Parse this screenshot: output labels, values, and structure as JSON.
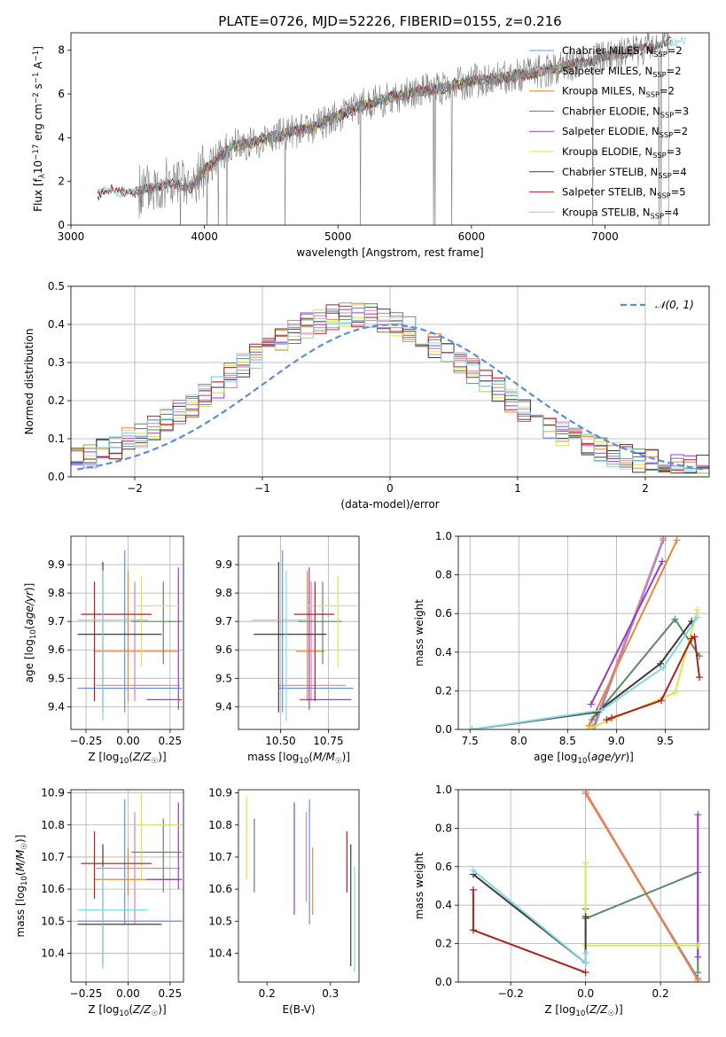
{
  "title": "PLATE=0726, MJD=52226, FIBERID=0155, z=0.216",
  "colors": {
    "chabrier_miles": "#6a8fd8",
    "salpeter_miles": "#e07fb0",
    "kroupa_miles": "#e8863a",
    "chabrier_elodie": "#5b8a63",
    "salpeter_elodie": "#9a3cc0",
    "kroupa_elodie": "#d8e84a",
    "chabrier_stelib": "#3a3a3a",
    "salpeter_stelib": "#b01e1e",
    "kroupa_stelib": "#86d6e0",
    "data_spectrum": "#808080",
    "normal_curve": "#5a8fd6",
    "grid": "#b0b0b0"
  },
  "chart_data": [
    {
      "type": "line",
      "panel": "spectrum",
      "xlabel": "wavelength [Angstrom, rest frame]",
      "ylabel": "Flux [f_λ10^-17 erg cm^-2 s^-1 A^-1]",
      "xlim": [
        3000,
        7780
      ],
      "ylim": [
        0,
        8.8
      ],
      "xticks": [
        3000,
        4000,
        5000,
        6000,
        7000
      ],
      "yticks": [
        0,
        2,
        4,
        6,
        8
      ],
      "grid": false,
      "legend_position": "upper right",
      "legend": [
        {
          "label": "Chabrier MILES, N",
          "sub": "SSP",
          "tail": "=2",
          "color": "#6a8fd8"
        },
        {
          "label": "Salpeter MILES, N",
          "sub": "SSP",
          "tail": "=2",
          "color": "#e07fb0"
        },
        {
          "label": "Kroupa MILES, N",
          "sub": "SSP",
          "tail": "=2",
          "color": "#e8863a"
        },
        {
          "label": "Chabrier ELODIE, N",
          "sub": "SSP",
          "tail": "=3",
          "color": "#5b8a63"
        },
        {
          "label": "Salpeter ELODIE, N",
          "sub": "SSP",
          "tail": "=2",
          "color": "#9a3cc0"
        },
        {
          "label": "Kroupa ELODIE, N",
          "sub": "SSP",
          "tail": "=3",
          "color": "#d8e84a"
        },
        {
          "label": "Chabrier STELIB, N",
          "sub": "SSP",
          "tail": "=4",
          "color": "#3a3a3a"
        },
        {
          "label": "Salpeter STELIB, N",
          "sub": "SSP",
          "tail": "=5",
          "color": "#b01e1e"
        },
        {
          "label": "Kroupa STELIB, N",
          "sub": "SSP",
          "tail": "=4",
          "color": "#86d6e0"
        }
      ],
      "continuum": {
        "x": [
          3200,
          3300,
          3500,
          3700,
          3900,
          4000,
          4200,
          4500,
          4800,
          5000,
          5200,
          5500,
          5800,
          6000,
          6200,
          6500,
          6800,
          7000,
          7300,
          7600
        ],
        "y": [
          1.45,
          1.6,
          1.5,
          1.9,
          1.7,
          2.5,
          3.6,
          4.0,
          4.5,
          5.0,
          5.5,
          6.0,
          6.3,
          6.6,
          6.7,
          7.0,
          7.4,
          7.7,
          8.1,
          8.5
        ]
      },
      "model_ranges": [
        {
          "series": "chabrier_miles",
          "x": [
            3500,
            7400
          ]
        },
        {
          "series": "salpeter_miles",
          "x": [
            3500,
            7400
          ]
        },
        {
          "series": "kroupa_miles",
          "x": [
            3520,
            7410
          ]
        },
        {
          "series": "chabrier_elodie",
          "x": [
            3900,
            6800
          ]
        },
        {
          "series": "salpeter_elodie",
          "x": [
            3900,
            6800
          ]
        },
        {
          "series": "kroupa_elodie",
          "x": [
            3900,
            6800
          ]
        },
        {
          "series": "chabrier_stelib",
          "x": [
            3200,
            7500
          ]
        },
        {
          "series": "salpeter_stelib",
          "x": [
            3200,
            7500
          ]
        },
        {
          "series": "kroupa_stelib",
          "x": [
            3200,
            7600
          ]
        }
      ]
    },
    {
      "type": "line",
      "panel": "residual_histogram",
      "xlabel": "(data-model)/error",
      "ylabel": "Normed distribution",
      "xlim": [
        -2.5,
        2.5
      ],
      "ylim": [
        0,
        0.5
      ],
      "xticks": [
        -2,
        -1,
        0,
        1,
        2
      ],
      "yticks": [
        0.0,
        0.1,
        0.2,
        0.3,
        0.4,
        0.5
      ],
      "grid": true,
      "legend_position": "upper right",
      "normal_label": "𝒩(0, 1)",
      "bin_width": 0.1,
      "bin_start": -2.5
    },
    {
      "type": "scatter",
      "panel": "age_vs_Z",
      "xlabel": "Z [log10(Z/Z☉)]",
      "ylabel": "age [log10(age/yr)]",
      "xlim": [
        -0.34,
        0.33
      ],
      "ylim": [
        9.32,
        10.0
      ],
      "xticks": [
        -0.25,
        0.0,
        0.25
      ],
      "yticks": [
        9.4,
        9.5,
        9.6,
        9.7,
        9.8,
        9.9
      ],
      "grid": true,
      "points": [
        {
          "series": "chabrier_miles",
          "Z": -0.02,
          "Z_err": [
            -0.3,
            0.32
          ],
          "age": 9.465,
          "age_err": [
            9.38,
            9.95
          ]
        },
        {
          "series": "salpeter_miles",
          "Z": 0.04,
          "Z_err": [
            -0.19,
            0.31
          ],
          "age": 9.475,
          "age_err": [
            9.42,
            9.84
          ]
        },
        {
          "series": "kroupa_miles",
          "Z": 0.0,
          "Z_err": [
            -0.2,
            0.3
          ],
          "age": 9.595,
          "age_err": [
            9.42,
            9.88
          ]
        },
        {
          "series": "chabrier_elodie",
          "Z": 0.21,
          "Z_err": [
            0.02,
            0.32
          ],
          "age": 9.7,
          "age_err": [
            9.55,
            9.84
          ]
        },
        {
          "series": "salpeter_elodie",
          "Z": 0.3,
          "Z_err": [
            0.11,
            0.32
          ],
          "age": 9.425,
          "age_err": [
            9.39,
            9.89
          ]
        },
        {
          "series": "kroupa_elodie",
          "Z": 0.08,
          "Z_err": [
            0.05,
            0.31
          ],
          "age": 9.755,
          "age_err": [
            9.54,
            9.86
          ]
        },
        {
          "series": "chabrier_stelib",
          "Z": -0.15,
          "Z_err": [
            -0.3,
            0.2
          ],
          "age": 9.655,
          "age_err": [
            9.38,
            9.91
          ]
        },
        {
          "series": "salpeter_stelib",
          "Z": -0.2,
          "Z_err": [
            -0.28,
            0.14
          ],
          "age": 9.725,
          "age_err": [
            9.42,
            9.84
          ]
        },
        {
          "series": "kroupa_stelib",
          "Z": -0.15,
          "Z_err": [
            -0.3,
            0.12
          ],
          "age": 9.705,
          "age_err": [
            9.35,
            9.88
          ]
        }
      ]
    },
    {
      "type": "scatter",
      "panel": "age_vs_mass",
      "xlabel": "mass [log10(M/M☉)]",
      "ylabel": "",
      "xlim": [
        10.28,
        10.91
      ],
      "ylim": [
        9.32,
        10.0
      ],
      "xticks": [
        10.5,
        10.75
      ],
      "yticks": [
        9.4,
        9.5,
        9.6,
        9.7,
        9.8,
        9.9
      ],
      "grid": true,
      "points": [
        {
          "series": "chabrier_miles",
          "mass": 10.51,
          "mass_err": [
            10.49,
            10.88
          ],
          "age": 9.465,
          "age_err": [
            9.38,
            9.95
          ]
        },
        {
          "series": "salpeter_miles",
          "mass": 10.66,
          "mass_err": [
            10.49,
            10.84
          ],
          "age": 9.475,
          "age_err": [
            9.42,
            9.84
          ]
        },
        {
          "series": "kroupa_miles",
          "mass": 10.64,
          "mass_err": [
            10.58,
            10.73
          ],
          "age": 9.595,
          "age_err": [
            9.42,
            9.88
          ]
        },
        {
          "series": "chabrier_elodie",
          "mass": 10.72,
          "mass_err": [
            10.59,
            10.82
          ],
          "age": 9.7,
          "age_err": [
            9.55,
            9.84
          ]
        },
        {
          "series": "salpeter_elodie",
          "mass": 10.65,
          "mass_err": [
            10.6,
            10.87
          ],
          "age": 9.425,
          "age_err": [
            9.39,
            9.89
          ]
        },
        {
          "series": "kroupa_elodie",
          "mass": 10.8,
          "mass_err": [
            10.63,
            10.9
          ],
          "age": 9.755,
          "age_err": [
            9.54,
            9.86
          ]
        },
        {
          "series": "chabrier_stelib",
          "mass": 10.49,
          "mass_err": [
            10.36,
            10.74
          ],
          "age": 9.655,
          "age_err": [
            9.38,
            9.91
          ]
        },
        {
          "series": "salpeter_stelib",
          "mass": 10.68,
          "mass_err": [
            10.57,
            10.78
          ],
          "age": 9.725,
          "age_err": [
            9.42,
            9.84
          ]
        },
        {
          "series": "kroupa_stelib",
          "mass": 10.53,
          "mass_err": [
            10.35,
            10.67
          ],
          "age": 9.705,
          "age_err": [
            9.35,
            9.88
          ]
        }
      ]
    },
    {
      "type": "line",
      "panel": "mass_weight_vs_age",
      "xlabel": "age [log10(age/yr)]",
      "ylabel": "mass weight",
      "xlim": [
        7.38,
        9.95
      ],
      "ylim": [
        0,
        1.0
      ],
      "xticks": [
        7.5,
        8.0,
        8.5,
        9.0,
        9.5
      ],
      "yticks": [
        0.0,
        0.2,
        0.4,
        0.6,
        0.8,
        1.0
      ],
      "grid": true,
      "series": [
        {
          "series": "chabrier_miles",
          "x": [
            8.78,
            9.48
          ],
          "y": [
            0.02,
            0.98
          ]
        },
        {
          "series": "salpeter_miles",
          "x": [
            8.76,
            9.48
          ],
          "y": [
            0.01,
            0.99
          ]
        },
        {
          "series": "kroupa_miles",
          "x": [
            8.72,
            9.62
          ],
          "y": [
            0.02,
            0.98
          ]
        },
        {
          "series": "chabrier_elodie",
          "x": [
            8.75,
            9.6,
            9.85
          ],
          "y": [
            0.05,
            0.57,
            0.38
          ]
        },
        {
          "series": "salpeter_elodie",
          "x": [
            8.74,
            9.47
          ],
          "y": [
            0.13,
            0.87
          ]
        },
        {
          "series": "kroupa_elodie",
          "x": [
            8.7,
            9.6,
            9.83
          ],
          "y": [
            0.0,
            0.19,
            0.62
          ]
        },
        {
          "series": "chabrier_stelib",
          "x": [
            7.52,
            8.8,
            9.45,
            9.77
          ],
          "y": [
            0.0,
            0.09,
            0.34,
            0.56
          ]
        },
        {
          "series": "salpeter_stelib",
          "x": [
            8.9,
            8.95,
            9.46,
            9.77,
            9.8,
            9.85
          ],
          "y": [
            0.05,
            0.06,
            0.15,
            0.47,
            0.48,
            0.27
          ]
        },
        {
          "series": "kroupa_stelib",
          "x": [
            7.52,
            8.85,
            9.48,
            9.83
          ],
          "y": [
            0.0,
            0.1,
            0.32,
            0.58
          ]
        }
      ]
    },
    {
      "type": "scatter",
      "panel": "mass_vs_Z",
      "xlabel": "Z [log10(Z/Z☉)]",
      "ylabel": "mass [log10(M/M☉)]",
      "xlim": [
        -0.34,
        0.33
      ],
      "ylim": [
        10.31,
        10.91
      ],
      "xticks": [
        -0.25,
        0.0,
        0.25
      ],
      "yticks": [
        10.4,
        10.5,
        10.6,
        10.7,
        10.8,
        10.9
      ],
      "grid": true,
      "points": [
        {
          "series": "chabrier_miles",
          "Z": -0.02,
          "Z_err": [
            -0.3,
            0.32
          ],
          "mass": 10.5,
          "mass_err": [
            10.49,
            10.88
          ]
        },
        {
          "series": "salpeter_miles",
          "Z": 0.04,
          "Z_err": [
            -0.19,
            0.31
          ],
          "mass": 10.665,
          "mass_err": [
            10.49,
            10.84
          ]
        },
        {
          "series": "kroupa_miles",
          "Z": 0.0,
          "Z_err": [
            -0.2,
            0.3
          ],
          "mass": 10.63,
          "mass_err": [
            10.58,
            10.73
          ]
        },
        {
          "series": "chabrier_elodie",
          "Z": 0.21,
          "Z_err": [
            0.02,
            0.32
          ],
          "mass": 10.715,
          "mass_err": [
            10.59,
            10.82
          ]
        },
        {
          "series": "salpeter_elodie",
          "Z": 0.3,
          "Z_err": [
            0.11,
            0.32
          ],
          "mass": 10.63,
          "mass_err": [
            10.6,
            10.87
          ]
        },
        {
          "series": "kroupa_elodie",
          "Z": 0.08,
          "Z_err": [
            0.05,
            0.31
          ],
          "mass": 10.8,
          "mass_err": [
            10.63,
            10.9
          ]
        },
        {
          "series": "chabrier_stelib",
          "Z": -0.15,
          "Z_err": [
            -0.3,
            0.2
          ],
          "mass": 10.49,
          "mass_err": [
            10.36,
            10.74
          ]
        },
        {
          "series": "salpeter_stelib",
          "Z": -0.2,
          "Z_err": [
            -0.28,
            0.14
          ],
          "mass": 10.68,
          "mass_err": [
            10.57,
            10.78
          ]
        },
        {
          "series": "kroupa_stelib",
          "Z": -0.15,
          "Z_err": [
            -0.3,
            0.12
          ],
          "mass": 10.535,
          "mass_err": [
            10.35,
            10.67
          ]
        }
      ]
    },
    {
      "type": "scatter",
      "panel": "mass_vs_ebv",
      "xlabel": "E(B-V)",
      "ylabel": "",
      "xlim": [
        0.155,
        0.345
      ],
      "ylim": [
        10.31,
        10.91
      ],
      "xticks": [
        0.2,
        0.3
      ],
      "yticks": [
        10.4,
        10.5,
        10.6,
        10.7,
        10.8,
        10.9
      ],
      "grid": false,
      "points": [
        {
          "series": "chabrier_miles",
          "ebv": 0.267,
          "mass_err": [
            10.49,
            10.88
          ]
        },
        {
          "series": "salpeter_miles",
          "ebv": 0.262,
          "mass_err": [
            10.56,
            10.84
          ]
        },
        {
          "series": "kroupa_miles",
          "ebv": 0.272,
          "mass_err": [
            10.52,
            10.73
          ]
        },
        {
          "series": "chabrier_elodie",
          "ebv": 0.18,
          "mass_err": [
            10.59,
            10.82
          ]
        },
        {
          "series": "salpeter_elodie",
          "ebv": 0.243,
          "mass_err": [
            10.52,
            10.87
          ]
        },
        {
          "series": "kroupa_elodie",
          "ebv": 0.168,
          "mass_err": [
            10.63,
            10.89
          ]
        },
        {
          "series": "chabrier_stelib",
          "ebv": 0.332,
          "mass_err": [
            10.36,
            10.74
          ]
        },
        {
          "series": "salpeter_stelib",
          "ebv": 0.326,
          "mass_err": [
            10.59,
            10.78
          ]
        },
        {
          "series": "kroupa_stelib",
          "ebv": 0.338,
          "mass_err": [
            10.34,
            10.67
          ]
        }
      ]
    },
    {
      "type": "line",
      "panel": "mass_weight_vs_Z",
      "xlabel": "Z [log10(Z/Z☉)]",
      "ylabel": "mass weight",
      "xlim": [
        -0.34,
        0.33
      ],
      "ylim": [
        0,
        1.0
      ],
      "xticks": [
        -0.2,
        0.0,
        0.2
      ],
      "yticks": [
        0.0,
        0.2,
        0.4,
        0.6,
        0.8,
        1.0
      ],
      "grid": true,
      "series": [
        {
          "series": "chabrier_miles",
          "x": [
            0.0,
            0.3
          ],
          "y": [
            0.98,
            0.02
          ]
        },
        {
          "series": "salpeter_miles",
          "x": [
            0.0,
            0.3
          ],
          "y": [
            0.99,
            0.01
          ]
        },
        {
          "series": "kroupa_miles",
          "x": [
            0.0,
            0.3
          ],
          "y": [
            0.98,
            0.01
          ]
        },
        {
          "series": "chabrier_elodie",
          "x": [
            0.0,
            0.0,
            0.3,
            0.3
          ],
          "y": [
            0.38,
            0.33,
            0.57,
            0.05
          ]
        },
        {
          "series": "salpeter_elodie",
          "x": [
            0.3,
            0.3
          ],
          "y": [
            0.87,
            0.13
          ]
        },
        {
          "series": "kroupa_elodie",
          "x": [
            0.0,
            0.0,
            0.3
          ],
          "y": [
            0.62,
            0.19,
            0.19
          ]
        },
        {
          "series": "chabrier_stelib",
          "x": [
            -0.3,
            0.0,
            0.0
          ],
          "y": [
            0.56,
            0.1,
            0.34
          ]
        },
        {
          "series": "salpeter_stelib",
          "x": [
            -0.3,
            -0.3,
            0.0
          ],
          "y": [
            0.48,
            0.27,
            0.05
          ]
        },
        {
          "series": "kroupa_stelib",
          "x": [
            -0.3,
            0.0,
            0.0
          ],
          "y": [
            0.58,
            0.1,
            0.15
          ]
        }
      ]
    }
  ]
}
